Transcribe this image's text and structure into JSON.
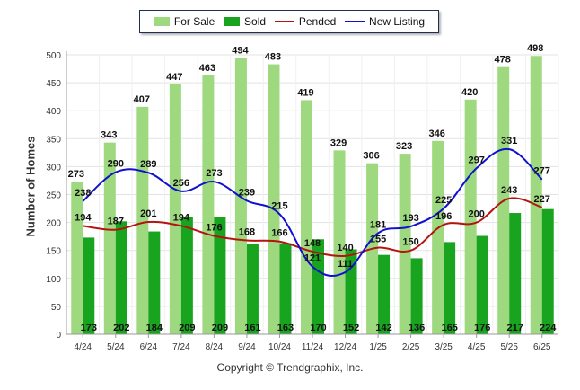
{
  "chart_data": {
    "type": "bar",
    "categories": [
      "4/24",
      "5/24",
      "6/24",
      "7/24",
      "8/24",
      "9/24",
      "10/24",
      "11/24",
      "12/24",
      "1/25",
      "2/25",
      "3/25",
      "4/25",
      "5/25",
      "6/25"
    ],
    "series": [
      {
        "name": "For Sale",
        "type": "bar",
        "color": "#9ed97f",
        "values": [
          273,
          343,
          407,
          447,
          463,
          494,
          483,
          419,
          329,
          306,
          323,
          346,
          420,
          478,
          498
        ]
      },
      {
        "name": "Sold",
        "type": "bar",
        "color": "#19a41f",
        "values": [
          173,
          202,
          184,
          209,
          209,
          161,
          163,
          170,
          152,
          142,
          136,
          165,
          176,
          217,
          224
        ]
      },
      {
        "name": "Pended",
        "type": "line",
        "color": "#b3140f",
        "values": [
          194,
          187,
          201,
          194,
          176,
          168,
          166,
          148,
          140,
          155,
          150,
          196,
          200,
          243,
          227
        ]
      },
      {
        "name": "New Listing",
        "type": "line",
        "color": "#1010d0",
        "values": [
          238,
          290,
          289,
          256,
          273,
          239,
          215,
          121,
          111,
          181,
          193,
          225,
          297,
          331,
          277
        ]
      }
    ],
    "ylabel": "Number of Homes",
    "ylim": [
      0,
      500
    ],
    "yticks": [
      0,
      50,
      100,
      150,
      200,
      250,
      300,
      350,
      400,
      450,
      500
    ],
    "grid": true,
    "legend": "top-center"
  },
  "legend": {
    "for_sale": "For Sale",
    "sold": "Sold",
    "pended": "Pended",
    "new_listing": "New Listing"
  },
  "copyright": "Copyright © Trendgraphix, Inc."
}
